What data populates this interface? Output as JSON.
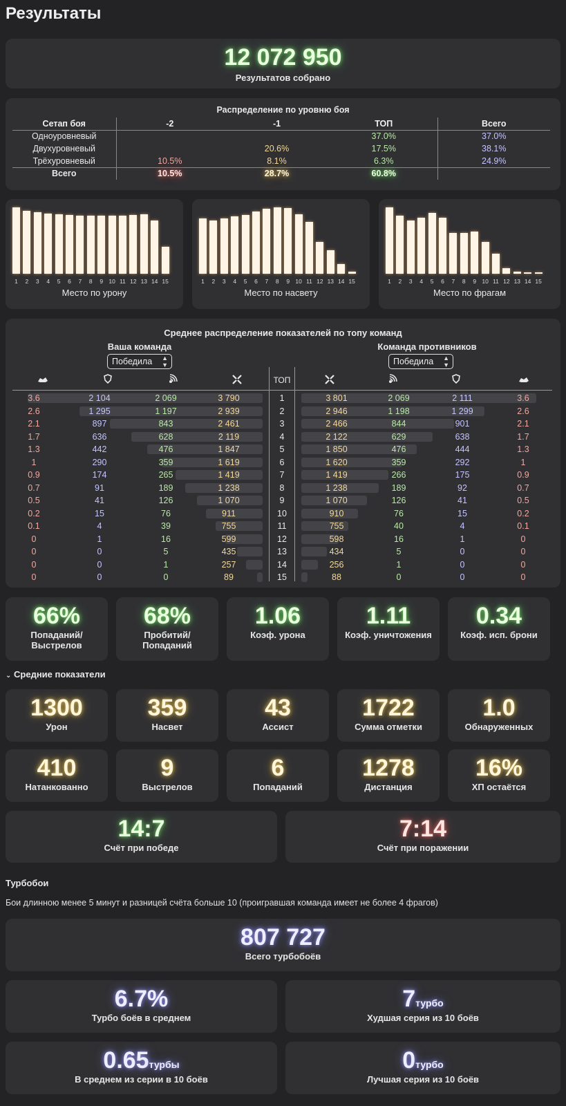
{
  "title": "Результаты",
  "total": {
    "value": "12 072 950",
    "label": "Результатов собрано"
  },
  "distribution": {
    "caption": "Распределение по уровню боя",
    "headers": [
      "Сетап боя",
      "-2",
      "-1",
      "ТОП",
      "Всего"
    ],
    "rows": [
      {
        "name": "Одноуровневый",
        "m2": "",
        "m1": "",
        "top": "37.0%",
        "total": "37.0%"
      },
      {
        "name": "Двухуровневый",
        "m2": "",
        "m1": "20.6%",
        "top": "17.5%",
        "total": "38.1%"
      },
      {
        "name": "Трёхуровневый",
        "m2": "10.5%",
        "m1": "8.1%",
        "top": "6.3%",
        "total": "24.9%"
      }
    ],
    "footer": {
      "name": "Всего",
      "m2": "10.5%",
      "m1": "28.7%",
      "top": "60.8%",
      "total": ""
    }
  },
  "chart_data": [
    {
      "type": "bar",
      "xlabel": "Место по урону",
      "categories": [
        "1",
        "2",
        "3",
        "4",
        "5",
        "6",
        "7",
        "8",
        "9",
        "10",
        "11",
        "12",
        "13",
        "14",
        "15"
      ],
      "values": [
        100,
        95,
        93,
        91,
        90,
        89,
        88,
        87,
        87,
        87,
        88,
        89,
        90,
        80,
        41
      ]
    },
    {
      "type": "bar",
      "xlabel": "Место по насвету",
      "categories": [
        "1",
        "2",
        "3",
        "4",
        "5",
        "6",
        "7",
        "8",
        "9",
        "10",
        "11",
        "12",
        "13",
        "14",
        "15"
      ],
      "values": [
        83,
        80,
        83,
        86,
        89,
        94,
        98,
        100,
        99,
        90,
        78,
        48,
        35,
        15,
        3
      ]
    },
    {
      "type": "bar",
      "xlabel": "Место по фрагам",
      "categories": [
        "1",
        "2",
        "3",
        "4",
        "5",
        "6",
        "7",
        "8",
        "9",
        "10",
        "11",
        "12",
        "13",
        "14",
        "15"
      ],
      "values": [
        100,
        88,
        80,
        84,
        92,
        84,
        61,
        61,
        64,
        48,
        30,
        8,
        3,
        2,
        2
      ]
    }
  ],
  "team_dist": {
    "caption": "Среднее распределение показателей по топу команд",
    "own_label": "Ваша команда",
    "enemy_label": "Команда противников",
    "own_select": "Победила",
    "enemy_select": "Победила",
    "top_label": "ТОП",
    "icons": [
      "frags-icon",
      "shield-icon",
      "spot-icon",
      "damage-icon"
    ],
    "rows": [
      {
        "place": "1",
        "own": [
          "3.6",
          "2 104",
          "2 069",
          "3 790"
        ],
        "enemy": [
          "3 801",
          "2 069",
          "2 111",
          "3.6"
        ]
      },
      {
        "place": "2",
        "own": [
          "2.6",
          "1 295",
          "1 197",
          "2 939"
        ],
        "enemy": [
          "2 946",
          "1 198",
          "1 299",
          "2.6"
        ]
      },
      {
        "place": "3",
        "own": [
          "2.1",
          "897",
          "843",
          "2 461"
        ],
        "enemy": [
          "2 466",
          "844",
          "901",
          "2.1"
        ]
      },
      {
        "place": "4",
        "own": [
          "1.7",
          "636",
          "628",
          "2 119"
        ],
        "enemy": [
          "2 122",
          "629",
          "638",
          "1.7"
        ]
      },
      {
        "place": "5",
        "own": [
          "1.3",
          "442",
          "476",
          "1 847"
        ],
        "enemy": [
          "1 850",
          "476",
          "444",
          "1.3"
        ]
      },
      {
        "place": "6",
        "own": [
          "1",
          "290",
          "359",
          "1 619"
        ],
        "enemy": [
          "1 620",
          "359",
          "292",
          "1"
        ]
      },
      {
        "place": "7",
        "own": [
          "0.9",
          "174",
          "265",
          "1 419"
        ],
        "enemy": [
          "1 419",
          "266",
          "175",
          "0.9"
        ]
      },
      {
        "place": "8",
        "own": [
          "0.7",
          "91",
          "189",
          "1 238"
        ],
        "enemy": [
          "1 238",
          "189",
          "92",
          "0.7"
        ]
      },
      {
        "place": "9",
        "own": [
          "0.5",
          "41",
          "126",
          "1 070"
        ],
        "enemy": [
          "1 070",
          "126",
          "41",
          "0.5"
        ]
      },
      {
        "place": "10",
        "own": [
          "0.2",
          "15",
          "76",
          "911"
        ],
        "enemy": [
          "910",
          "76",
          "15",
          "0.2"
        ]
      },
      {
        "place": "11",
        "own": [
          "0.1",
          "4",
          "39",
          "755"
        ],
        "enemy": [
          "755",
          "40",
          "4",
          "0.1"
        ]
      },
      {
        "place": "12",
        "own": [
          "0",
          "1",
          "16",
          "599"
        ],
        "enemy": [
          "598",
          "16",
          "1",
          "0"
        ]
      },
      {
        "place": "13",
        "own": [
          "0",
          "0",
          "5",
          "435"
        ],
        "enemy": [
          "434",
          "5",
          "0",
          "0"
        ]
      },
      {
        "place": "14",
        "own": [
          "0",
          "0",
          "1",
          "257"
        ],
        "enemy": [
          "256",
          "1",
          "0",
          "0"
        ]
      },
      {
        "place": "15",
        "own": [
          "0",
          "0",
          "0",
          "89"
        ],
        "enemy": [
          "88",
          "0",
          "0",
          "0"
        ]
      }
    ],
    "bar_fracs": [
      1.0,
      0.78,
      0.65,
      0.56,
      0.49,
      0.43,
      0.37,
      0.33,
      0.28,
      0.24,
      0.2,
      0.16,
      0.11,
      0.07,
      0.025
    ]
  },
  "ratios": [
    {
      "value": "66%",
      "label": "Попаданий/ Выстрелов"
    },
    {
      "value": "68%",
      "label": "Пробитий/ Попаданий"
    },
    {
      "value": "1.06",
      "label": "Коэф. урона"
    },
    {
      "value": "1.11",
      "label": "Коэф. уничтожения"
    },
    {
      "value": "0.34",
      "label": "Коэф. исп. брони"
    }
  ],
  "averages": {
    "toggle": "Средние показатели",
    "row1": [
      {
        "value": "1300",
        "label": "Урон"
      },
      {
        "value": "359",
        "label": "Насвет"
      },
      {
        "value": "43",
        "label": "Ассист"
      },
      {
        "value": "1722",
        "label": "Сумма отметки"
      },
      {
        "value": "1.0",
        "label": "Обнаруженных"
      }
    ],
    "row2": [
      {
        "value": "410",
        "label": "Натанкованно"
      },
      {
        "value": "9",
        "label": "Выстрелов"
      },
      {
        "value": "6",
        "label": "Попаданий"
      },
      {
        "value": "1278",
        "label": "Дистанция"
      },
      {
        "value": "16%",
        "label": "ХП остаётся"
      }
    ],
    "win_score": {
      "value": "14:7",
      "label": "Счёт при победе"
    },
    "lose_score": {
      "value": "7:14",
      "label": "Счёт при поражении"
    }
  },
  "turbo": {
    "title": "Турбобои",
    "description": "Бои длинною менее 5 минут и разницей счёта больше 10 (проигравшая команда имеет не более 4 фрагов)",
    "total": {
      "value": "807 727",
      "label": "Всего турбобоёв"
    },
    "avg_pct": {
      "value": "6.7%",
      "label": "Турбо боёв в среднем"
    },
    "worst": {
      "value": "7",
      "suffix": "турбо",
      "label": "Худшая серия из 10 боёв"
    },
    "avg_series": {
      "value": "0.65",
      "suffix": "турбы",
      "label": "В среднем из серии в 10 боёв"
    },
    "best": {
      "value": "0",
      "suffix": "турбо",
      "label": "Лучшая серия из 10 боёв"
    }
  },
  "colors": {
    "green": "#b9e8a8",
    "yellow": "#f2d89a",
    "red": "#f0a8a0",
    "blue": "#c4c4ff",
    "card": "#303033",
    "bg": "#232325"
  }
}
